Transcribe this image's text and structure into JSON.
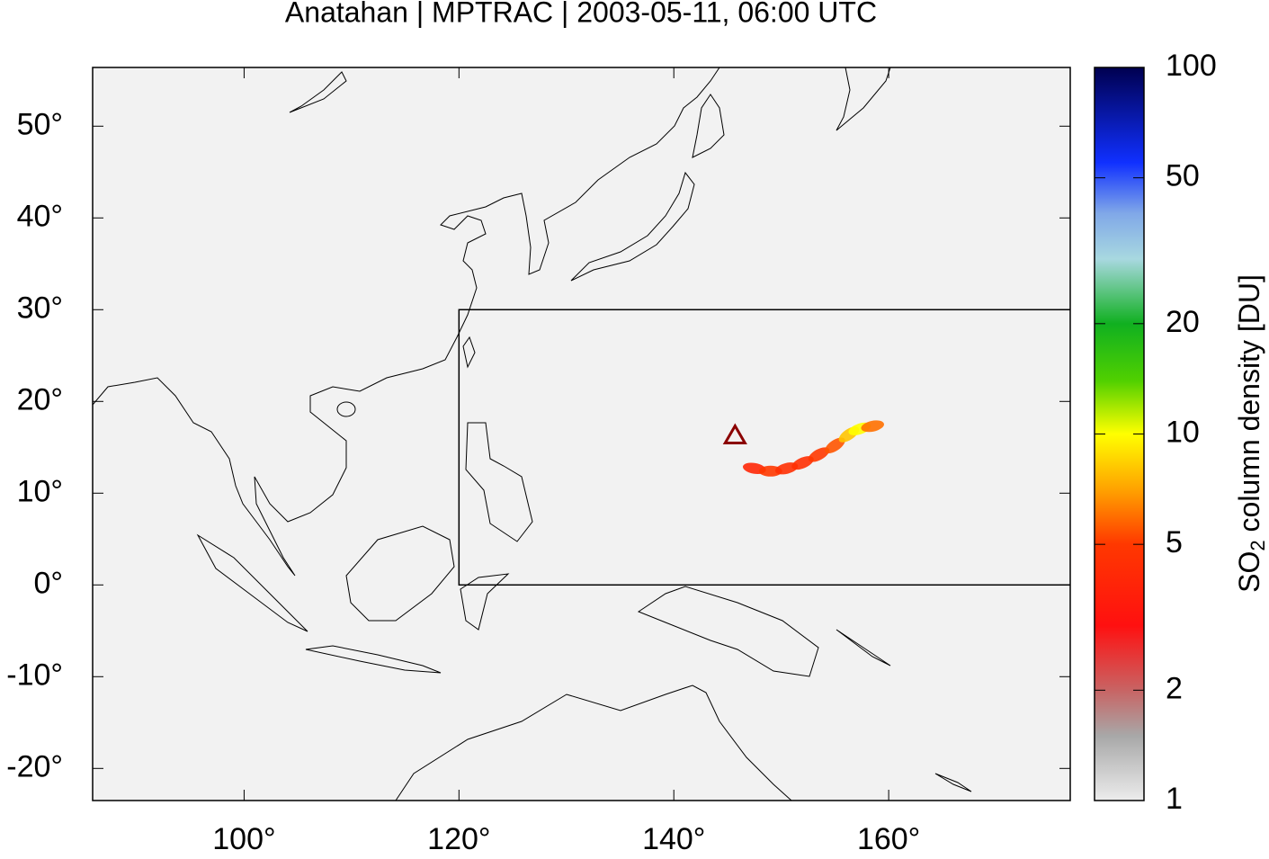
{
  "chart_data": {
    "type": "map",
    "title": "Anatahan | MPTRAC | 2003-05-11, 06:00 UTC",
    "xlim": [
      85.9,
      176.9
    ],
    "ylim": [
      -23.5,
      56.4
    ],
    "xticks": [
      {
        "value": 100,
        "label": "100°"
      },
      {
        "value": 120,
        "label": "120°"
      },
      {
        "value": 140,
        "label": "140°"
      },
      {
        "value": 160,
        "label": "160°"
      }
    ],
    "yticks": [
      {
        "value": 50,
        "label": "50°"
      },
      {
        "value": 40,
        "label": "40°"
      },
      {
        "value": 30,
        "label": "30°"
      },
      {
        "value": 20,
        "label": "20°"
      },
      {
        "value": 10,
        "label": "10°"
      },
      {
        "value": 0,
        "label": "0°"
      },
      {
        "value": -10,
        "label": "-10°"
      },
      {
        "value": -20,
        "label": "-20°"
      }
    ],
    "region_box": {
      "lon": [
        120,
        180
      ],
      "lat": [
        0,
        30
      ]
    },
    "volcano": {
      "lon": 145.7,
      "lat": 16.35,
      "color": "#8b0000"
    },
    "plume": {
      "lon": [
        147.5,
        149,
        150.5,
        152,
        153.5,
        155,
        156.3,
        157.3,
        158.5
      ],
      "lat": [
        12.7,
        12.4,
        12.7,
        13.3,
        14.2,
        15.2,
        16.4,
        17.0,
        17.3
      ],
      "values": [
        4,
        5,
        4.5,
        4.5,
        5,
        5.5,
        8,
        10,
        6
      ]
    },
    "colorbar": {
      "label": {
        "prefix": "SO",
        "subscript": "2",
        "suffix": " column density [DU]"
      },
      "log": true,
      "lim": [
        1,
        100
      ],
      "ticks": [
        1,
        2,
        5,
        10,
        20,
        50,
        100
      ],
      "colormap": [
        {
          "value": 1,
          "color": "#ececec"
        },
        {
          "value": 1.5,
          "color": "#a8a8a8"
        },
        {
          "value": 2,
          "color": "#c86464"
        },
        {
          "value": 3,
          "color": "#ff1010"
        },
        {
          "value": 5,
          "color": "#ff3800"
        },
        {
          "value": 7,
          "color": "#ffa000"
        },
        {
          "value": 10,
          "color": "#ffff00"
        },
        {
          "value": 14,
          "color": "#50d000"
        },
        {
          "value": 20,
          "color": "#10b020"
        },
        {
          "value": 30,
          "color": "#a8d8e0"
        },
        {
          "value": 40,
          "color": "#80a8e8"
        },
        {
          "value": 55,
          "color": "#1030ff"
        },
        {
          "value": 100,
          "color": "#000050"
        }
      ]
    }
  }
}
